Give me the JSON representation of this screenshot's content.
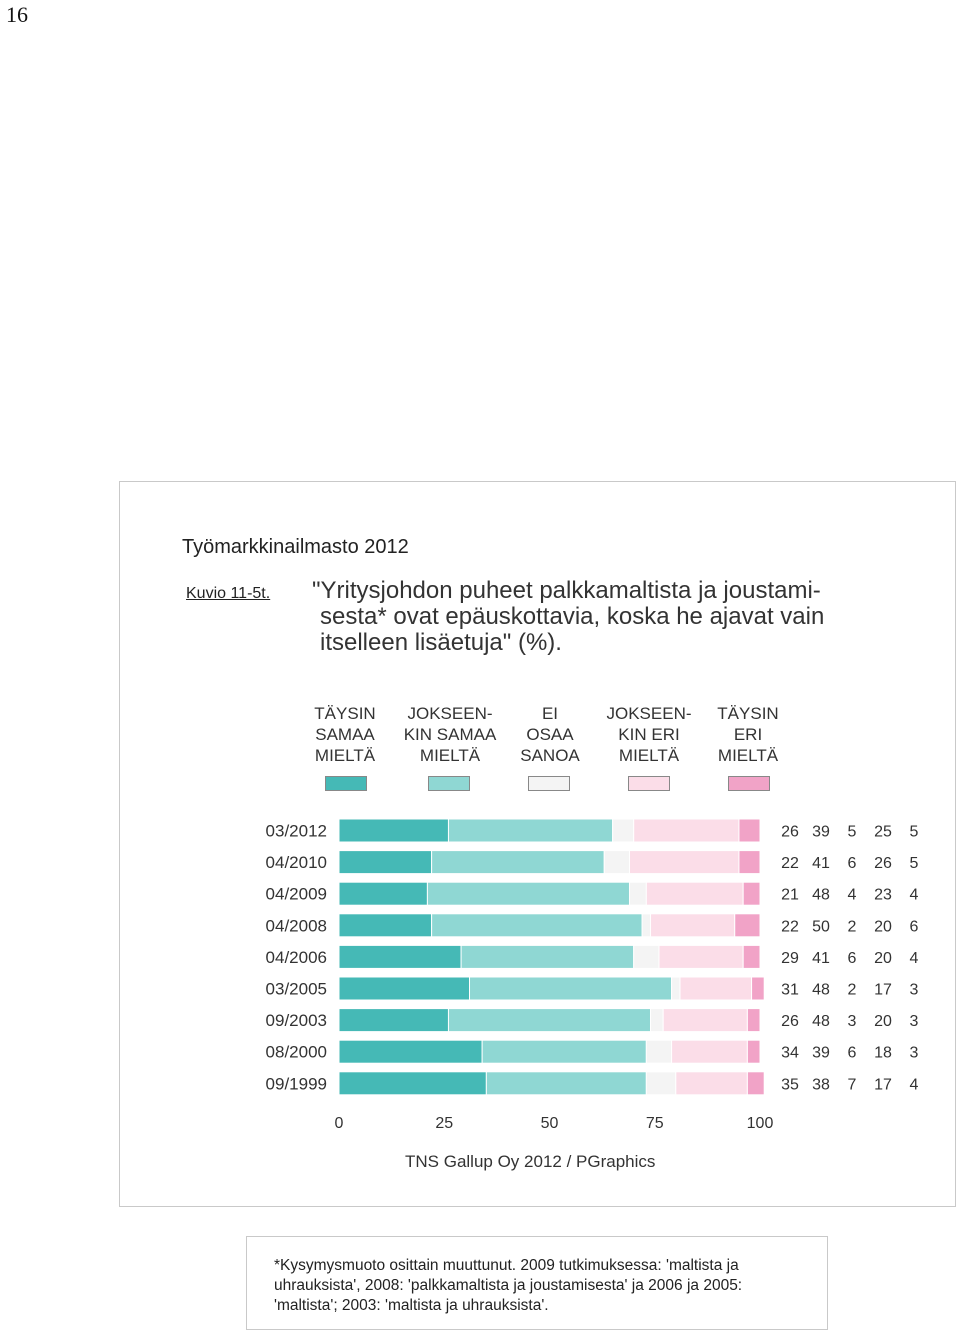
{
  "page_number": "16",
  "publication": "Työmarkkinailmasto 2012",
  "figure_id": "Kuvio 11-5t.",
  "figure_title_lines": [
    "\"Yritysjohdon puheet palkkamaltista ja joustami-",
    "sesta* ovat epäuskottavia, koska he ajavat vain",
    "itselleen lisäetuja\" (%)."
  ],
  "colors": {
    "fully_agree": "#45b9b6",
    "partly_agree": "#8fd7d3",
    "dont_know": "#f4f4f4",
    "partly_disagree": "#fbdde8",
    "fully_disagree": "#f1a3c7"
  },
  "legend": [
    {
      "lines": [
        "TÄYSIN",
        "SAMAA",
        "MIELTÄ"
      ],
      "color_key": "fully_agree"
    },
    {
      "lines": [
        "JOKSEEN-",
        "KIN SAMAA",
        "MIELTÄ"
      ],
      "color_key": "partly_agree"
    },
    {
      "lines": [
        "EI",
        "OSAA",
        "SANOA"
      ],
      "color_key": "dont_know"
    },
    {
      "lines": [
        "JOKSEEN-",
        "KIN ERI",
        "MIELTÄ"
      ],
      "color_key": "partly_disagree"
    },
    {
      "lines": [
        "TÄYSIN",
        "ERI",
        "MIELTÄ"
      ],
      "color_key": "fully_disagree"
    }
  ],
  "chart_data": {
    "type": "bar",
    "orientation": "horizontal",
    "stacked": true,
    "categories": [
      "03/2012",
      "04/2010",
      "04/2009",
      "04/2008",
      "04/2006",
      "03/2005",
      "09/2003",
      "08/2000",
      "09/1999"
    ],
    "series": [
      {
        "name": "TÄYSIN SAMAA MIELTÄ",
        "color_key": "fully_agree",
        "values": [
          26,
          22,
          21,
          22,
          29,
          31,
          26,
          34,
          35
        ]
      },
      {
        "name": "JOKSEENKIN SAMAA MIELTÄ",
        "color_key": "partly_agree",
        "values": [
          39,
          41,
          48,
          50,
          41,
          48,
          48,
          39,
          38
        ]
      },
      {
        "name": "EI OSAA SANOA",
        "color_key": "dont_know",
        "values": [
          5,
          6,
          4,
          2,
          6,
          2,
          3,
          6,
          7
        ]
      },
      {
        "name": "JOKSEENKIN ERI MIELTÄ",
        "color_key": "partly_disagree",
        "values": [
          25,
          26,
          23,
          20,
          20,
          17,
          20,
          18,
          17
        ]
      },
      {
        "name": "TÄYSIN ERI MIELTÄ",
        "color_key": "fully_disagree",
        "values": [
          5,
          5,
          4,
          6,
          4,
          3,
          3,
          3,
          4
        ]
      }
    ],
    "x_ticks": [
      "0",
      "25",
      "50",
      "75",
      "100"
    ],
    "xlim": [
      0,
      100
    ],
    "grid": false,
    "legend_position": "top"
  },
  "source": "TNS Gallup Oy 2012 / PGraphics",
  "footnote_lines": [
    "*Kysymysmuoto osittain muuttunut. 2009 tutkimuksessa: 'maltista ja",
    "uhrauksista', 2008: 'palkkamaltista ja joustamisesta' ja 2006 ja 2005:",
    "'maltista'; 2003: 'maltista ja uhrauksista'."
  ]
}
